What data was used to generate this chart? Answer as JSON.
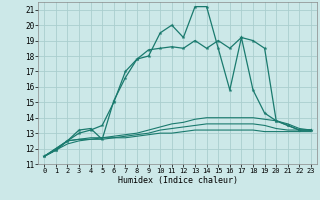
{
  "xlabel": "Humidex (Indice chaleur)",
  "background_color": "#cce8e8",
  "grid_color": "#aacece",
  "line_color": "#1a7a6e",
  "xlim": [
    -0.5,
    23.5
  ],
  "ylim": [
    11,
    21.5
  ],
  "yticks": [
    11,
    12,
    13,
    14,
    15,
    16,
    17,
    18,
    19,
    20,
    21
  ],
  "xticks": [
    0,
    1,
    2,
    3,
    4,
    5,
    6,
    7,
    8,
    9,
    10,
    11,
    12,
    13,
    14,
    15,
    16,
    17,
    18,
    19,
    20,
    21,
    22,
    23
  ],
  "series_peaked1": {
    "x": [
      0,
      1,
      2,
      3,
      4,
      5,
      6,
      7,
      8,
      9,
      10,
      11,
      12,
      13,
      14,
      15,
      16,
      17,
      18,
      19,
      20,
      21,
      22,
      23
    ],
    "y": [
      11.5,
      11.9,
      12.5,
      13.2,
      13.3,
      12.6,
      15.1,
      16.6,
      17.8,
      18.0,
      19.5,
      20.0,
      19.2,
      21.2,
      21.2,
      18.5,
      15.8,
      19.2,
      15.8,
      14.3,
      13.8,
      13.5,
      13.2,
      13.2
    ]
  },
  "series_peaked2": {
    "x": [
      0,
      1,
      2,
      3,
      4,
      5,
      6,
      7,
      8,
      9,
      10,
      11,
      12,
      13,
      14,
      15,
      16,
      17,
      18,
      19,
      20,
      21,
      22,
      23
    ],
    "y": [
      11.5,
      11.9,
      12.5,
      13.0,
      13.2,
      13.5,
      15.0,
      17.0,
      17.8,
      18.4,
      18.5,
      18.6,
      18.5,
      19.0,
      18.5,
      19.0,
      18.5,
      19.2,
      19.0,
      18.5,
      13.8,
      13.5,
      13.2,
      13.2
    ]
  },
  "series_flat1": {
    "x": [
      0,
      1,
      2,
      3,
      4,
      5,
      6,
      7,
      8,
      9,
      10,
      11,
      12,
      13,
      14,
      15,
      16,
      17,
      18,
      19,
      20,
      21,
      22,
      23
    ],
    "y": [
      11.5,
      12.0,
      12.5,
      12.6,
      12.7,
      12.7,
      12.8,
      12.9,
      13.0,
      13.2,
      13.4,
      13.6,
      13.7,
      13.9,
      14.0,
      14.0,
      14.0,
      14.0,
      14.0,
      13.9,
      13.8,
      13.6,
      13.3,
      13.2
    ]
  },
  "series_flat2": {
    "x": [
      0,
      1,
      2,
      3,
      4,
      5,
      6,
      7,
      8,
      9,
      10,
      11,
      12,
      13,
      14,
      15,
      16,
      17,
      18,
      19,
      20,
      21,
      22,
      23
    ],
    "y": [
      11.5,
      12.0,
      12.5,
      12.6,
      12.6,
      12.7,
      12.7,
      12.8,
      12.9,
      13.0,
      13.2,
      13.3,
      13.4,
      13.5,
      13.6,
      13.6,
      13.6,
      13.6,
      13.6,
      13.5,
      13.3,
      13.2,
      13.2,
      13.2
    ]
  },
  "series_flat3": {
    "x": [
      0,
      1,
      2,
      3,
      4,
      5,
      6,
      7,
      8,
      9,
      10,
      11,
      12,
      13,
      14,
      15,
      16,
      17,
      18,
      19,
      20,
      21,
      22,
      23
    ],
    "y": [
      11.5,
      11.9,
      12.3,
      12.5,
      12.6,
      12.6,
      12.7,
      12.7,
      12.8,
      12.9,
      13.0,
      13.0,
      13.1,
      13.2,
      13.2,
      13.2,
      13.2,
      13.2,
      13.2,
      13.1,
      13.1,
      13.1,
      13.1,
      13.1
    ]
  }
}
